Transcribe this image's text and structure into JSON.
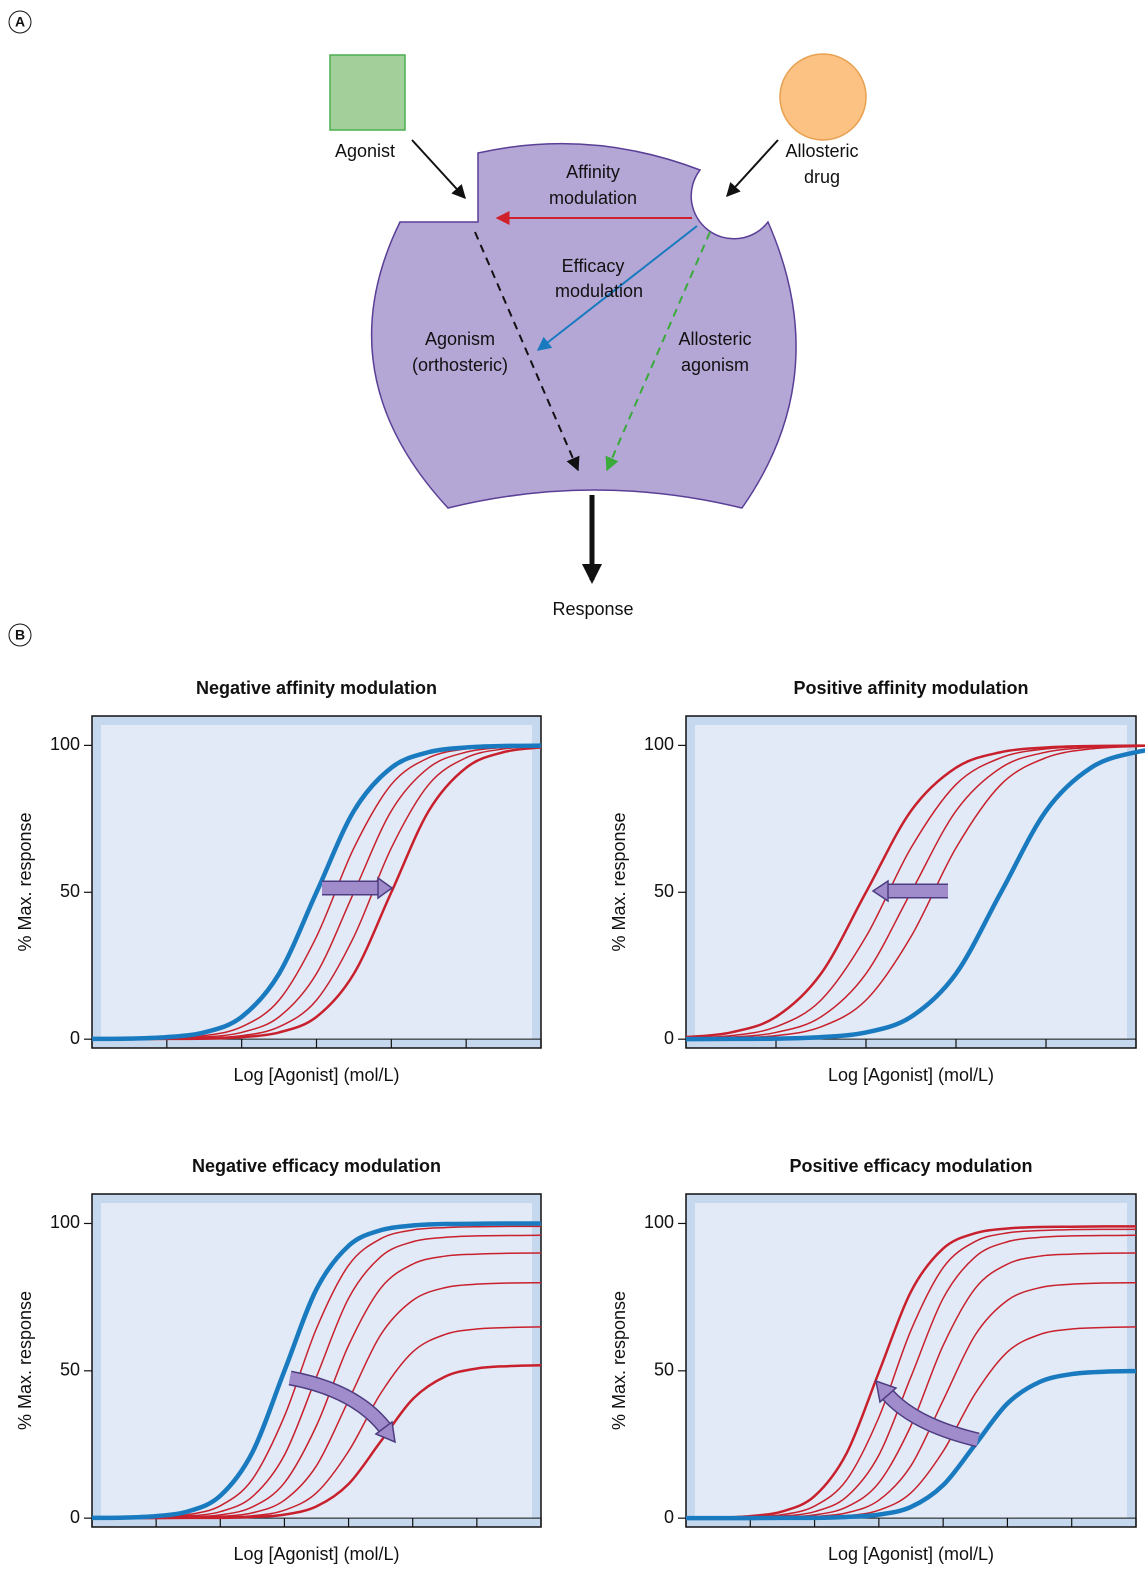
{
  "panel_labels": [
    "A",
    "B"
  ],
  "diagram": {
    "agonist": "Agonist",
    "allosteric_drug": [
      "Allosteric",
      "drug"
    ],
    "affinity_modulation": [
      "Affinity",
      "modulation"
    ],
    "efficacy_modulation": [
      "Efficacy",
      "modulation"
    ],
    "agonism": [
      "Agonism",
      "(orthosteric)"
    ],
    "allosteric_agonism": [
      "Allosteric",
      "agonism"
    ],
    "response": "Response"
  },
  "chart_data": [
    {
      "type": "line",
      "title": "Negative affinity modulation",
      "x_label": "Log [Agonist] (mol/L)",
      "y_label": "% Max. response",
      "x": [
        0,
        0.5,
        1,
        1.5,
        2,
        2.5,
        3,
        3.5,
        4,
        4.5,
        5,
        5.5,
        6
      ],
      "xlim": [
        0,
        6
      ],
      "xticks": [
        0,
        1,
        2,
        3,
        4,
        5,
        6
      ],
      "ylim": [
        -3,
        110
      ],
      "yticks": [
        0,
        50,
        100
      ],
      "series": [
        {
          "color": "#c8202c",
          "linewidth": 1.5,
          "values": [
            0.0,
            0.1,
            0.4,
            1.2,
            4.2,
            13.3,
            34.9,
            65.1,
            86.7,
            95.8,
            98.8,
            99.6,
            99.9
          ]
        },
        {
          "color": "#c8202c",
          "linewidth": 1.5,
          "values": [
            0.0,
            0.1,
            0.2,
            0.7,
            2.3,
            7.6,
            22.3,
            50,
            77.7,
            92.4,
            97.7,
            99.3,
            99.8
          ]
        },
        {
          "color": "#c8202c",
          "linewidth": 1.5,
          "values": [
            0.0,
            0.0,
            0.1,
            0.4,
            1.2,
            4.2,
            13.3,
            34.9,
            65.1,
            86.7,
            95.8,
            98.8,
            99.6
          ]
        },
        {
          "color": "#c8202c",
          "linewidth": 2.5,
          "values": [
            0.0,
            0.0,
            0.1,
            0.2,
            0.7,
            2.3,
            7.6,
            22.3,
            50,
            77.7,
            92.4,
            97.7,
            99.3
          ]
        },
        {
          "color": "#1a7abf",
          "linewidth": 4.5,
          "values": [
            0.1,
            0.2,
            0.7,
            2.3,
            7.6,
            22.3,
            50,
            77.7,
            92.4,
            97.7,
            99.3,
            99.8,
            99.9
          ]
        }
      ]
    },
    {
      "type": "line",
      "title": "Positive affinity modulation",
      "x_label": "Log [Agonist] (mol/L)",
      "y_label": "% Max. response",
      "x": [
        0,
        0.5,
        1,
        1.5,
        2,
        2.5,
        3,
        3.5,
        4,
        4.5,
        5,
        5.5,
        6
      ],
      "xlim": [
        0,
        5
      ],
      "xticks": [
        0,
        1,
        2,
        3,
        4,
        5
      ],
      "ylim": [
        -3,
        110
      ],
      "yticks": [
        0,
        50,
        100
      ],
      "series": [
        {
          "color": "#c8202c",
          "linewidth": 2.5,
          "values": [
            0.7,
            2.3,
            7.6,
            22.3,
            50,
            77.7,
            92.4,
            97.7,
            99.3,
            99.8,
            99.9,
            100,
            100
          ]
        },
        {
          "color": "#c8202c",
          "linewidth": 1.5,
          "values": [
            0.4,
            1.2,
            4.2,
            13.3,
            34.9,
            65.1,
            86.7,
            95.8,
            98.8,
            99.6,
            99.9,
            100,
            100
          ]
        },
        {
          "color": "#c8202c",
          "linewidth": 1.5,
          "values": [
            0.2,
            0.7,
            2.3,
            7.6,
            22.3,
            50,
            77.7,
            92.4,
            97.7,
            99.3,
            99.8,
            99.9,
            100
          ]
        },
        {
          "color": "#c8202c",
          "linewidth": 1.5,
          "values": [
            0.1,
            0.4,
            1.2,
            4.2,
            13.3,
            34.9,
            65.1,
            86.7,
            95.8,
            98.8,
            99.6,
            99.9,
            100
          ]
        },
        {
          "color": "#1a7abf",
          "linewidth": 4.5,
          "values": [
            0.0,
            0.1,
            0.2,
            0.7,
            2.3,
            7.6,
            22.3,
            50,
            77.7,
            92.4,
            97.7,
            99.3,
            99.8
          ]
        }
      ]
    },
    {
      "type": "line",
      "title": "Negative efficacy modulation",
      "x_label": "Log [Agonist] (mol/L)",
      "y_label": "% Max. response",
      "x": [
        0,
        0.5,
        1,
        1.5,
        2,
        2.5,
        3,
        3.5,
        4,
        4.5,
        5,
        5.5,
        6,
        6.5,
        7
      ],
      "xlim": [
        0,
        7
      ],
      "xticks": [
        0,
        1,
        2,
        3,
        4,
        5,
        6,
        7
      ],
      "ylim": [
        -3,
        110
      ],
      "yticks": [
        0,
        50,
        100
      ],
      "series": [
        {
          "color": "#c8202c",
          "linewidth": 1.5,
          "values": [
            0.0,
            0.1,
            0.4,
            1.2,
            4.2,
            13.2,
            34.6,
            64.4,
            85.8,
            94.8,
            97.8,
            98.6,
            98.9,
            99,
            99
          ]
        },
        {
          "color": "#c8202c",
          "linewidth": 1.5,
          "values": [
            0.0,
            0.1,
            0.2,
            0.7,
            2.2,
            7.3,
            21.4,
            48,
            74.6,
            88.7,
            93.8,
            95.3,
            95.8,
            95.9,
            96
          ]
        },
        {
          "color": "#c8202c",
          "linewidth": 1.5,
          "values": [
            0.0,
            0.0,
            0.1,
            0.4,
            1.1,
            3.8,
            12,
            31.4,
            58.6,
            78,
            86.2,
            88.9,
            89.6,
            89.9,
            90
          ]
        },
        {
          "color": "#c8202c",
          "linewidth": 1.5,
          "values": [
            0.0,
            0.0,
            0.1,
            0.2,
            0.6,
            1.8,
            6.1,
            17.8,
            40,
            62.2,
            73.9,
            78.2,
            79.4,
            79.8,
            79.9
          ]
        },
        {
          "color": "#c8202c",
          "linewidth": 1.5,
          "values": [
            0.0,
            0.0,
            0.0,
            0.1,
            0.3,
            0.8,
            2.7,
            8.6,
            22.7,
            42.3,
            56.4,
            62.3,
            64.2,
            64.7,
            64.9
          ]
        },
        {
          "color": "#c8202c",
          "linewidth": 2.5,
          "values": [
            0.0,
            0.0,
            0.0,
            0.1,
            0.1,
            0.4,
            1.2,
            4.0,
            11.6,
            26,
            40.4,
            48,
            50.8,
            51.6,
            51.9
          ]
        },
        {
          "color": "#1a7abf",
          "linewidth": 4.5,
          "values": [
            0.1,
            0.2,
            0.7,
            2.3,
            7.6,
            22.3,
            50,
            77.7,
            92.4,
            97.7,
            99.3,
            99.8,
            99.9,
            100,
            100
          ]
        }
      ]
    },
    {
      "type": "line",
      "title": "Positive efficacy modulation",
      "x_label": "Log [Agonist] (mol/L)",
      "y_label": "% Max. response",
      "x": [
        0,
        0.5,
        1,
        1.5,
        2,
        2.5,
        3,
        3.5,
        4,
        4.5,
        5,
        5.5,
        6,
        6.5,
        7
      ],
      "xlim": [
        0,
        7
      ],
      "xticks": [
        0,
        1,
        2,
        3,
        4,
        5,
        6,
        7
      ],
      "ylim": [
        -3,
        110
      ],
      "yticks": [
        0,
        50,
        100
      ],
      "series": [
        {
          "color": "#c8202c",
          "linewidth": 2.5,
          "values": [
            0.1,
            0.2,
            0.7,
            2.3,
            7.5,
            22.1,
            49.5,
            76.9,
            91.5,
            96.7,
            98.3,
            98.8,
            98.9,
            99,
            99
          ]
        },
        {
          "color": "#c8202c",
          "linewidth": 1.5,
          "values": [
            0.0,
            0.1,
            0.4,
            1.2,
            4.1,
            13,
            34.2,
            63.8,
            85,
            93.9,
            96.8,
            97.6,
            97.9,
            98,
            98
          ]
        },
        {
          "color": "#c8202c",
          "linewidth": 1.5,
          "values": [
            0.0,
            0.1,
            0.2,
            0.7,
            2.2,
            7.3,
            21.4,
            48,
            74.6,
            88.7,
            93.8,
            95.3,
            95.8,
            95.9,
            96
          ]
        },
        {
          "color": "#c8202c",
          "linewidth": 1.5,
          "values": [
            0.0,
            0.0,
            0.1,
            0.4,
            1.1,
            3.8,
            12,
            31.4,
            58.6,
            78,
            86.2,
            88.9,
            89.6,
            89.9,
            90
          ]
        },
        {
          "color": "#c8202c",
          "linewidth": 1.5,
          "values": [
            0.0,
            0.0,
            0.1,
            0.2,
            0.6,
            1.8,
            6.1,
            17.8,
            40,
            62.2,
            73.9,
            78.2,
            79.4,
            79.8,
            79.9
          ]
        },
        {
          "color": "#c8202c",
          "linewidth": 1.5,
          "values": [
            0.0,
            0.0,
            0.0,
            0.1,
            0.3,
            0.8,
            2.7,
            8.6,
            22.7,
            42.3,
            56.4,
            62.3,
            64.2,
            64.7,
            64.9
          ]
        },
        {
          "color": "#1a7abf",
          "linewidth": 4.5,
          "values": [
            0.0,
            0.0,
            0.0,
            0.1,
            0.1,
            0.4,
            1.2,
            3.8,
            11.2,
            25,
            38.9,
            46.2,
            48.9,
            49.7,
            49.9
          ]
        }
      ]
    }
  ]
}
